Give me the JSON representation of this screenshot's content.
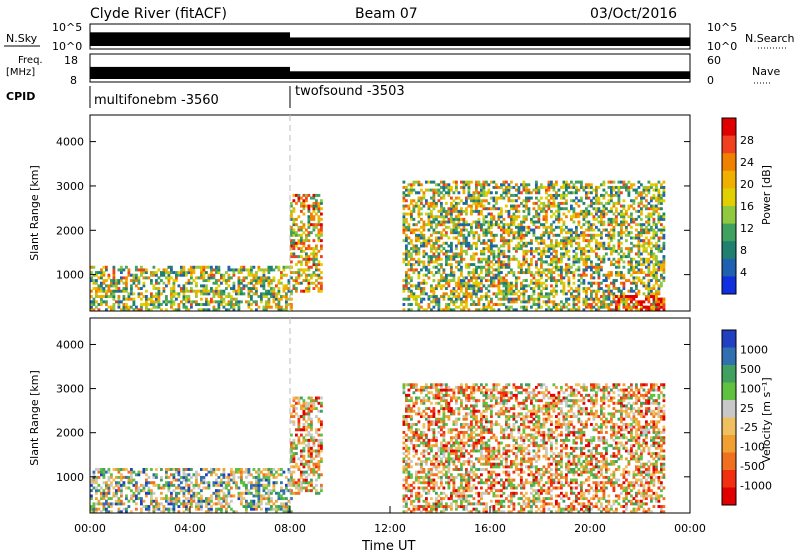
{
  "header": {
    "title": "Clyde River (fitACF)",
    "beam": "Beam 07",
    "date": "03/Oct/2016"
  },
  "strip_nsky": {
    "left_label": "N.Sky",
    "right_label": "N.Search",
    "ticks_left": [
      "10^5",
      "10^0"
    ],
    "ticks_right": [
      "10^5",
      "10^0"
    ],
    "series": [
      {
        "x": [
          0,
          8
        ],
        "level": 0.72
      },
      {
        "x": [
          8,
          24
        ],
        "level": 0.45
      }
    ]
  },
  "strip_freq": {
    "left_label_1": "Freq.",
    "left_label_2": "[MHz]",
    "right_label": "Nave",
    "ticks_left": [
      "18",
      "8"
    ],
    "ticks_right": [
      "60",
      "0"
    ],
    "series": [
      {
        "x": [
          0,
          8
        ],
        "level": 0.55
      },
      {
        "x": [
          8,
          24
        ],
        "level": 0.35
      }
    ]
  },
  "cpid": {
    "label": "CPID",
    "segments": [
      {
        "name": "multifonebm  -3560",
        "start": 0,
        "end": 8
      },
      {
        "name": "twofsound  -3503",
        "start": 8,
        "end": 24
      }
    ]
  },
  "chart_data": [
    {
      "type": "heatmap",
      "variable": "Power",
      "ylabel": "Slant Range [km]",
      "xlabel": "",
      "ylim": [
        180,
        4600
      ],
      "y_ticks": [
        "4000",
        "3000",
        "2000",
        "1000"
      ],
      "xlim": [
        0,
        24
      ],
      "colorbar": {
        "label": "Power [dB]",
        "ticks": [
          "28",
          "24",
          "20",
          "16",
          "12",
          "8",
          "4"
        ],
        "colors": [
          "#e00000",
          "#f04020",
          "#f08000",
          "#f0b000",
          "#e0d000",
          "#90c840",
          "#40a060",
          "#208070",
          "#2060b0",
          "#1030e0"
        ]
      },
      "regions": [
        {
          "t": [
            0,
            8
          ],
          "r": [
            180,
            1200
          ],
          "value": 12
        },
        {
          "t": [
            8,
            9.2
          ],
          "r": [
            600,
            2800
          ],
          "value": 16
        },
        {
          "t": [
            12.5,
            23
          ],
          "r": [
            180,
            3100
          ],
          "value": 12
        },
        {
          "t": [
            21,
            23
          ],
          "r": [
            180,
            500
          ],
          "value": 28
        }
      ]
    },
    {
      "type": "heatmap",
      "variable": "Velocity",
      "ylabel": "Slant Range [km]",
      "xlabel": "Time UT",
      "ylim": [
        180,
        4600
      ],
      "y_ticks": [
        "4000",
        "3000",
        "2000",
        "1000"
      ],
      "xlim": [
        0,
        24
      ],
      "x_ticks": [
        "00:00",
        "04:00",
        "08:00",
        "12:00",
        "16:00",
        "20:00",
        "00:00"
      ],
      "colorbar": {
        "label": "Velocity [m s⁻¹]",
        "ticks": [
          "1000",
          "500",
          "100",
          "25",
          "-25",
          "-100",
          "-500",
          "-1000"
        ],
        "colors": [
          "#2040c0",
          "#3070b0",
          "#40a060",
          "#60c040",
          "#c8c8c8",
          "#f0c060",
          "#f0a030",
          "#f07020",
          "#f03010",
          "#e00000"
        ]
      },
      "regions": [
        {
          "t": [
            0,
            8
          ],
          "r": [
            180,
            1200
          ],
          "value": 0
        },
        {
          "t": [
            8,
            9.2
          ],
          "r": [
            600,
            2800
          ],
          "value": -100
        },
        {
          "t": [
            12.5,
            23
          ],
          "r": [
            180,
            3100
          ],
          "value": -100
        }
      ]
    }
  ]
}
